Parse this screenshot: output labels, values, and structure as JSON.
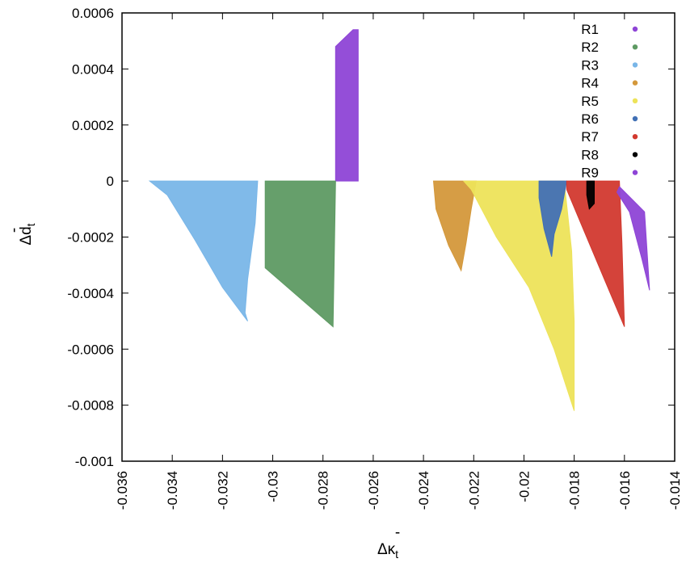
{
  "chart_data": {
    "type": "scatter",
    "title": "",
    "xlabel_main": "Δκ",
    "xlabel_sub": "t",
    "xlabel_bar": "-",
    "ylabel_main": "Δd",
    "ylabel_sub": "t",
    "ylabel_bar": "-",
    "xlim": [
      -0.036,
      -0.014
    ],
    "ylim": [
      -0.001,
      0.0006
    ],
    "x_ticks": [
      "-0.036",
      "-0.034",
      "-0.032",
      "-0.03",
      "-0.028",
      "-0.026",
      "-0.024",
      "-0.022",
      "-0.02",
      "-0.018",
      "-0.016",
      "-0.014"
    ],
    "x_tick_values": [
      -0.036,
      -0.034,
      -0.032,
      -0.03,
      -0.028,
      -0.026,
      -0.024,
      -0.022,
      -0.02,
      -0.018,
      -0.016,
      -0.014
    ],
    "y_ticks": [
      "0.0006",
      "0.0004",
      "0.0002",
      "0",
      "-0.0002",
      "-0.0004",
      "-0.0006",
      "-0.0008",
      "-0.001"
    ],
    "y_tick_values": [
      0.0006,
      0.0004,
      0.0002,
      0,
      -0.0002,
      -0.0004,
      -0.0006,
      -0.0008,
      -0.001
    ],
    "grid": false,
    "legend_position": "top-right",
    "series": [
      {
        "name": "R1",
        "color": "#8e44d6",
        "points": [
          [
            -0.0275,
            0.00048
          ],
          [
            -0.0268,
            0.00054
          ],
          [
            -0.0266,
            0.00054
          ],
          [
            -0.0266,
            0.0
          ],
          [
            -0.0275,
            0.0
          ]
        ]
      },
      {
        "name": "R2",
        "color": "#5e9a63",
        "points": [
          [
            -0.0303,
            0.0
          ],
          [
            -0.0275,
            0.0
          ],
          [
            -0.0276,
            -0.00052
          ],
          [
            -0.0303,
            -0.00031
          ]
        ]
      },
      {
        "name": "R3",
        "color": "#79b6e8",
        "points": [
          [
            -0.0349,
            0.0
          ],
          [
            -0.0306,
            0.0
          ],
          [
            -0.0307,
            -0.00015
          ],
          [
            -0.031,
            -0.00035
          ],
          [
            -0.0311,
            -0.00047
          ],
          [
            -0.031,
            -0.0005
          ],
          [
            -0.032,
            -0.00038
          ],
          [
            -0.0331,
            -0.00021
          ],
          [
            -0.0342,
            -5e-05
          ]
        ]
      },
      {
        "name": "R4",
        "color": "#d4983b",
        "points": [
          [
            -0.0236,
            0.0
          ],
          [
            -0.0219,
            0.0
          ],
          [
            -0.0221,
            -0.0001
          ],
          [
            -0.0223,
            -0.00022
          ],
          [
            -0.0225,
            -0.00032
          ],
          [
            -0.023,
            -0.00023
          ],
          [
            -0.0235,
            -0.0001
          ]
        ]
      },
      {
        "name": "R5",
        "color": "#ede35a",
        "points": [
          [
            -0.0224,
            0.0
          ],
          [
            -0.0184,
            0.0
          ],
          [
            -0.0181,
            -0.00025
          ],
          [
            -0.018,
            -0.0005
          ],
          [
            -0.018,
            -0.00082
          ],
          [
            -0.0188,
            -0.0006
          ],
          [
            -0.0198,
            -0.00038
          ],
          [
            -0.0211,
            -0.0002
          ],
          [
            -0.0221,
            -3e-05
          ]
        ]
      },
      {
        "name": "R6",
        "color": "#4170b5",
        "points": [
          [
            -0.0194,
            0.0
          ],
          [
            -0.0183,
            0.0
          ],
          [
            -0.0185,
            -0.0001
          ],
          [
            -0.0188,
            -0.00019
          ],
          [
            -0.0189,
            -0.00027
          ],
          [
            -0.0192,
            -0.00017
          ],
          [
            -0.0194,
            -6e-05
          ]
        ]
      },
      {
        "name": "R7",
        "color": "#d2392f",
        "points": [
          [
            -0.0183,
            0.0
          ],
          [
            -0.0162,
            0.0
          ],
          [
            -0.0161,
            -0.00022
          ],
          [
            -0.016,
            -0.00052
          ],
          [
            -0.0168,
            -0.00035
          ],
          [
            -0.0176,
            -0.00018
          ],
          [
            -0.0183,
            -3e-05
          ]
        ]
      },
      {
        "name": "R8",
        "color": "#000000",
        "points": [
          [
            -0.0175,
            0.0
          ],
          [
            -0.0172,
            0.0
          ],
          [
            -0.0172,
            -8e-05
          ],
          [
            -0.0174,
            -0.0001
          ],
          [
            -0.0175,
            -5e-05
          ]
        ]
      },
      {
        "name": "R9",
        "color": "#8e44d6",
        "points": [
          [
            -0.0162,
            -2e-05
          ],
          [
            -0.0152,
            -0.00011
          ],
          [
            -0.015,
            -0.00039
          ],
          [
            -0.0153,
            -0.00028
          ],
          [
            -0.0158,
            -0.00011
          ],
          [
            -0.0163,
            -4e-05
          ]
        ]
      }
    ]
  }
}
